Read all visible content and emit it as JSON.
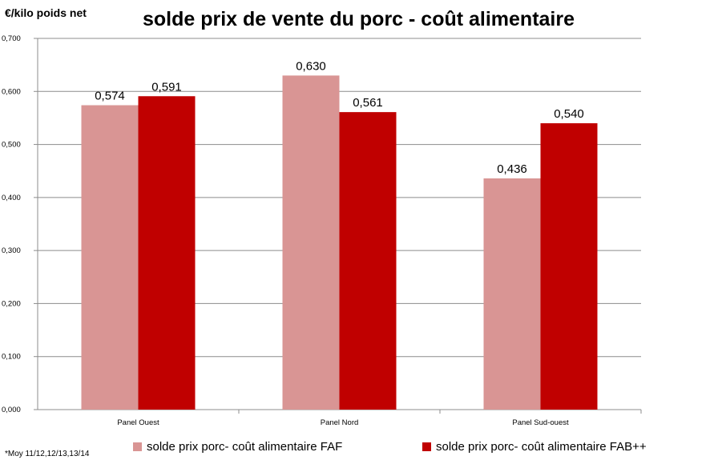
{
  "chart_data": {
    "type": "bar",
    "title": "solde prix de vente du porc - coût alimentaire",
    "ylabel": "€/kilo poids net",
    "categories": [
      "Panel Ouest",
      "Panel Nord",
      "Panel Sud-ouest"
    ],
    "series": [
      {
        "name": "solde prix porc- coût alimentaire FAF",
        "values": [
          0.574,
          0.63,
          0.436
        ],
        "labels": [
          "0,574",
          "0,630",
          "0,436"
        ],
        "color": "#d99594"
      },
      {
        "name": "solde prix porc- coût alimentaire FAB++",
        "values": [
          0.591,
          0.561,
          0.54
        ],
        "labels": [
          "0,591",
          "0,561",
          "0,540"
        ],
        "color": "#c00000"
      }
    ],
    "ylim": [
      0,
      0.7
    ],
    "yticks": [
      "0,000",
      "0,100",
      "0,200",
      "0,300",
      "0,400",
      "0,500",
      "0,600",
      "0,700"
    ],
    "grid": true,
    "legend_position": "bottom",
    "footnote": "*Moy 11/12,12/13,13/14"
  }
}
